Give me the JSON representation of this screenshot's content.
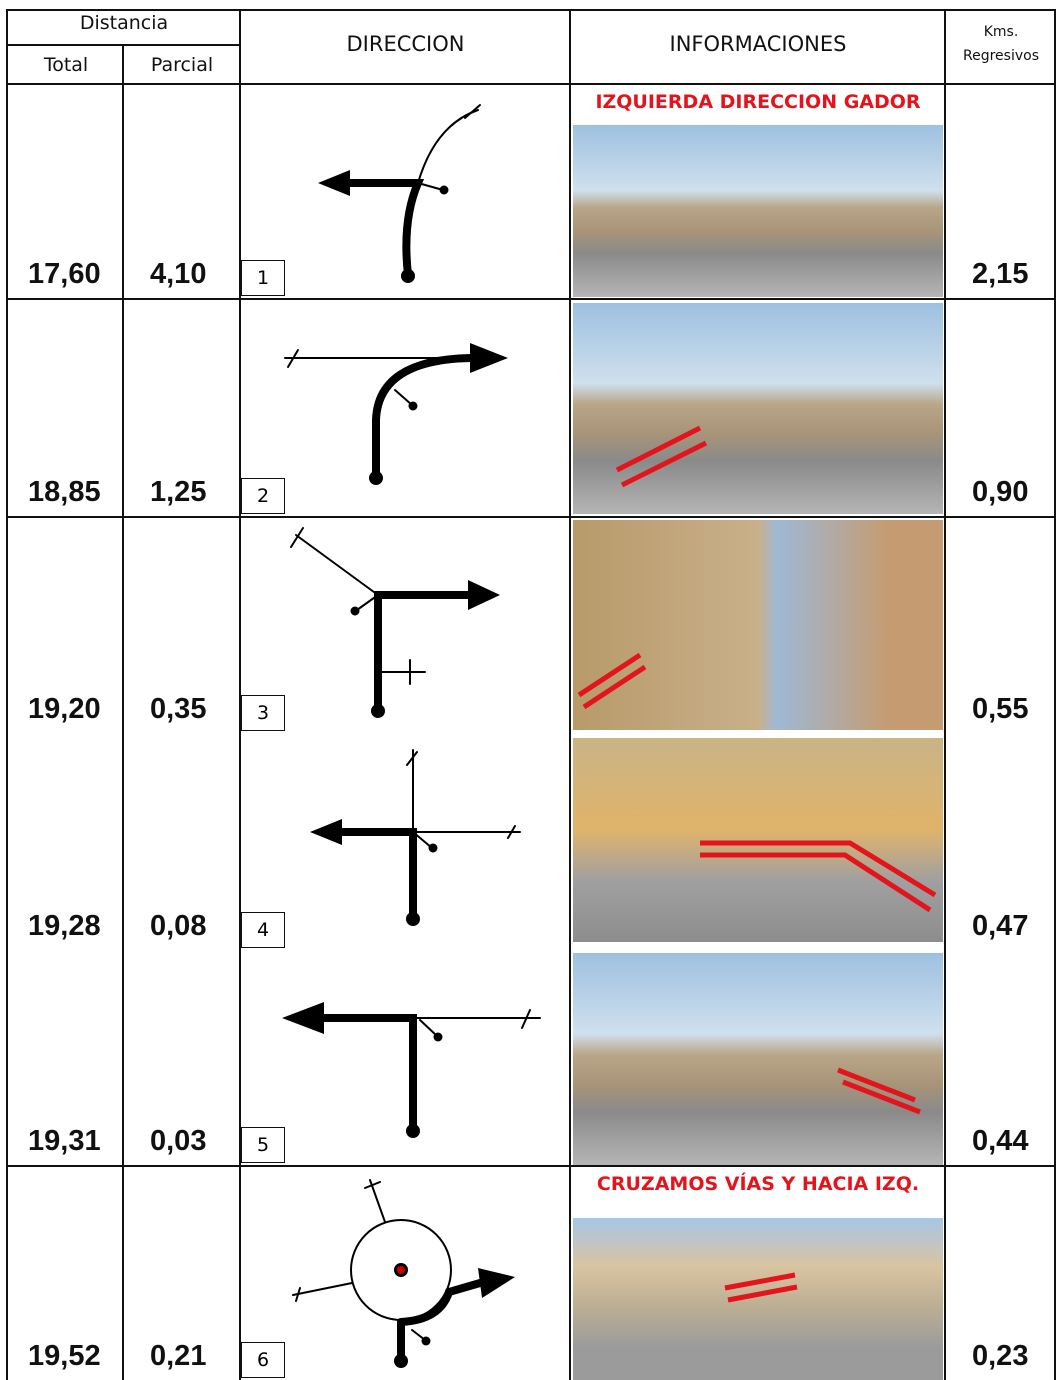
{
  "header": {
    "distancia": "Distancia",
    "total": "Total",
    "parcial": "Parcial",
    "direccion": "DIRECCION",
    "informaciones": "INFORMACIONES",
    "kms": "Kms.",
    "regresivos": "Regresivos"
  },
  "rows": [
    {
      "total": "17,60",
      "parcial": "4,10",
      "step": "1",
      "note": "IZQUIERDA DIRECCION GADOR",
      "remaining": "2,15"
    },
    {
      "total": "18,85",
      "parcial": "1,25",
      "step": "2",
      "remaining": "0,90"
    },
    {
      "total": "19,20",
      "parcial": "0,35",
      "step": "3",
      "remaining": "0,55"
    },
    {
      "total": "19,28",
      "parcial": "0,08",
      "step": "4",
      "remaining": "0,47"
    },
    {
      "total": "19,31",
      "parcial": "0,03",
      "step": "5",
      "remaining": "0,44"
    },
    {
      "total": "19,52",
      "parcial": "0,21",
      "step": "6",
      "note": "CRUZAMOS VÍAS Y HACIA IZQ.",
      "remaining": "0,23"
    }
  ]
}
